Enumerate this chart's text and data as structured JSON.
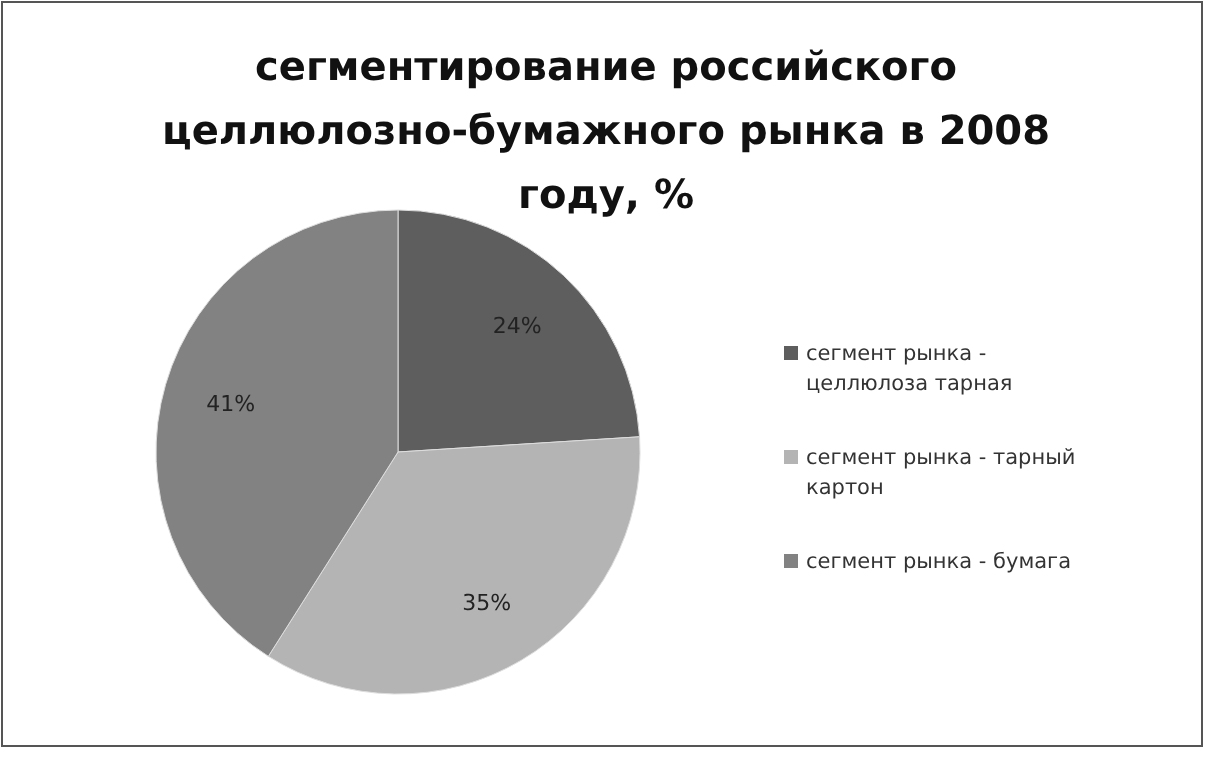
{
  "chart_data": {
    "type": "pie",
    "title": "сегментирование российского целлюлозно-бумажного рынка в 2008 году, %",
    "categories": [
      "сегмент рынка - целлюлоза тарная",
      "сегмент рынка - тарный картон",
      "сегмент рынка - бумага"
    ],
    "values": [
      24,
      35,
      41
    ],
    "colors": [
      "#5e5e5e",
      "#b4b4b4",
      "#828282"
    ],
    "value_labels": [
      "24%",
      "35%",
      "41%"
    ],
    "legend": "right"
  }
}
